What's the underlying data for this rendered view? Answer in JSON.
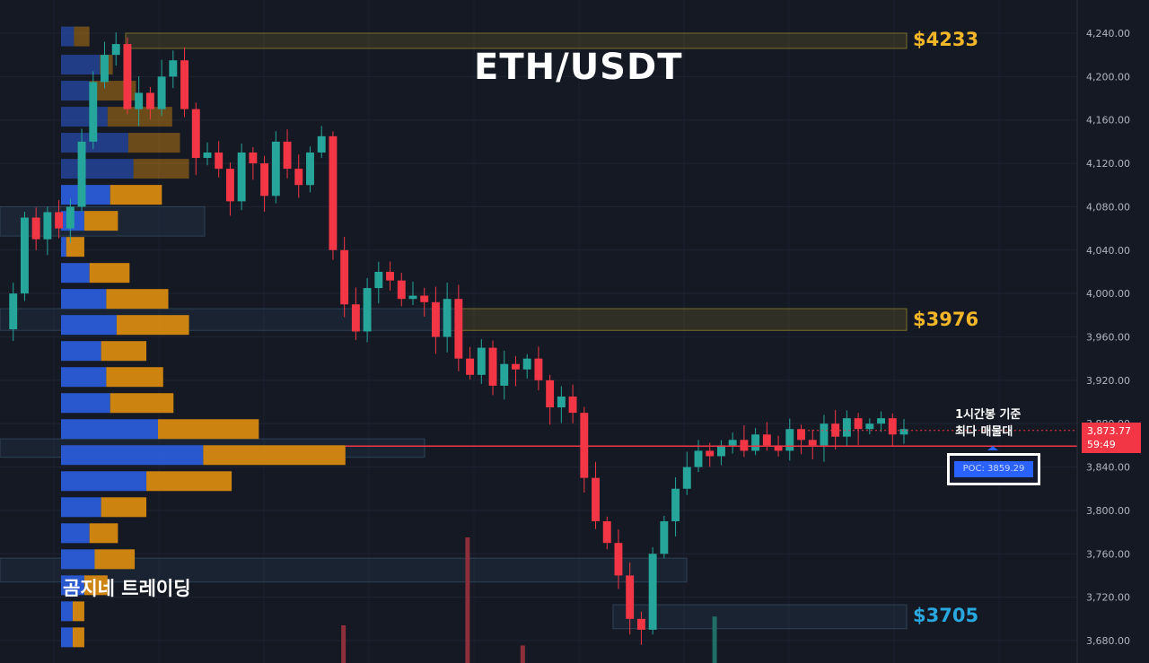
{
  "chart": {
    "title": "ETH/USDT",
    "watermark": "곰지네 트레이딩",
    "colors": {
      "background": "#151924",
      "up": "#26a69a",
      "down": "#f23645",
      "vp_up": "#2a5bd7",
      "vp_down": "#d68910",
      "level_yellow": "#f2b629",
      "level_blue": "#29a8e0"
    },
    "levels": [
      {
        "label": "$4233",
        "color": "yellow"
      },
      {
        "label": "$3976",
        "color": "yellow"
      },
      {
        "label": "$3705",
        "color": "blue"
      }
    ],
    "annotation": {
      "line1": "1시간봉 기준",
      "line2": "최다 매물대"
    },
    "poc_label": "POC: 3859.29",
    "current_price": "3,873.77",
    "countdown": "59:49",
    "price_axis": {
      "ticks": [
        "4,240.00",
        "4,200.00",
        "4,160.00",
        "4,120.00",
        "4,080.00",
        "4,040.00",
        "4,000.00",
        "3,960.00",
        "3,920.00",
        "3,880.00",
        "3,840.00",
        "3,800.00",
        "3,760.00",
        "3,720.00",
        "3,680.00"
      ]
    }
  },
  "chart_data": {
    "type": "candlestick",
    "title": "ETH/USDT",
    "timeframe": "1시간봉",
    "ylim": [
      3672,
      4250
    ],
    "y_ticks": [
      4240,
      4200,
      4160,
      4120,
      4080,
      4040,
      4000,
      3960,
      3920,
      3880,
      3840,
      3800,
      3760,
      3720,
      3680
    ],
    "current_price": 3873.77,
    "poc": 3859.29,
    "levels": [
      4233,
      3976,
      3705
    ],
    "close_path": [
      3967,
      4000,
      4070,
      4050,
      4075,
      4060,
      4080,
      4140,
      4195,
      4220,
      4230,
      4170,
      4185,
      4170,
      4200,
      4215,
      4170,
      4125,
      4130,
      4115,
      4085,
      4130,
      4120,
      4090,
      4140,
      4115,
      4100,
      4130,
      4145,
      4040,
      3990,
      3965,
      4005,
      4020,
      4012,
      3995,
      3998,
      3992,
      3960,
      3995,
      3940,
      3925,
      3950,
      3915,
      3935,
      3930,
      3940,
      3920,
      3895,
      3905,
      3890,
      3830,
      3790,
      3770,
      3740,
      3700,
      3690,
      3760,
      3790,
      3820,
      3840,
      3855,
      3850,
      3860,
      3865,
      3855,
      3870,
      3860,
      3855,
      3875,
      3865,
      3860,
      3880,
      3868,
      3885,
      3875,
      3880,
      3885,
      3870,
      3875
    ],
    "volume_profile": [
      {
        "price": 4237,
        "buy": 1.0,
        "sell": 1.2
      },
      {
        "price": 4211,
        "buy": 3.0,
        "sell": 1.0
      },
      {
        "price": 4187,
        "buy": 2.2,
        "sell": 3.6
      },
      {
        "price": 4163,
        "buy": 3.6,
        "sell": 5.0
      },
      {
        "price": 4139,
        "buy": 5.2,
        "sell": 4.0
      },
      {
        "price": 4115,
        "buy": 5.6,
        "sell": 4.3
      },
      {
        "price": 4091,
        "buy": 3.8,
        "sell": 4.0
      },
      {
        "price": 4067,
        "buy": 1.8,
        "sell": 2.6
      },
      {
        "price": 4043,
        "buy": 0.4,
        "sell": 1.4
      },
      {
        "price": 4019,
        "buy": 2.2,
        "sell": 3.1
      },
      {
        "price": 3995,
        "buy": 3.5,
        "sell": 4.8
      },
      {
        "price": 3971,
        "buy": 4.3,
        "sell": 5.6
      },
      {
        "price": 3947,
        "buy": 3.1,
        "sell": 3.5
      },
      {
        "price": 3923,
        "buy": 3.5,
        "sell": 4.4
      },
      {
        "price": 3899,
        "buy": 3.8,
        "sell": 4.9
      },
      {
        "price": 3875,
        "buy": 7.5,
        "sell": 7.8
      },
      {
        "price": 3851,
        "buy": 11.0,
        "sell": 11.0
      },
      {
        "price": 3827,
        "buy": 6.6,
        "sell": 6.6
      },
      {
        "price": 3803,
        "buy": 3.1,
        "sell": 3.5
      },
      {
        "price": 3779,
        "buy": 2.2,
        "sell": 2.2
      },
      {
        "price": 3755,
        "buy": 2.6,
        "sell": 3.1
      },
      {
        "price": 3731,
        "buy": 1.8,
        "sell": 1.8
      },
      {
        "price": 3707,
        "buy": 0.9,
        "sell": 0.9
      },
      {
        "price": 3683,
        "buy": 0.9,
        "sell": 0.9
      }
    ],
    "volume_spikes": [
      {
        "at": 0.405,
        "value": 1.0,
        "dir": "down"
      },
      {
        "at": 0.297,
        "value": 0.3,
        "dir": "down"
      },
      {
        "at": 0.453,
        "value": 0.14,
        "dir": "down"
      },
      {
        "at": 0.62,
        "value": 0.37,
        "dir": "up"
      }
    ]
  }
}
